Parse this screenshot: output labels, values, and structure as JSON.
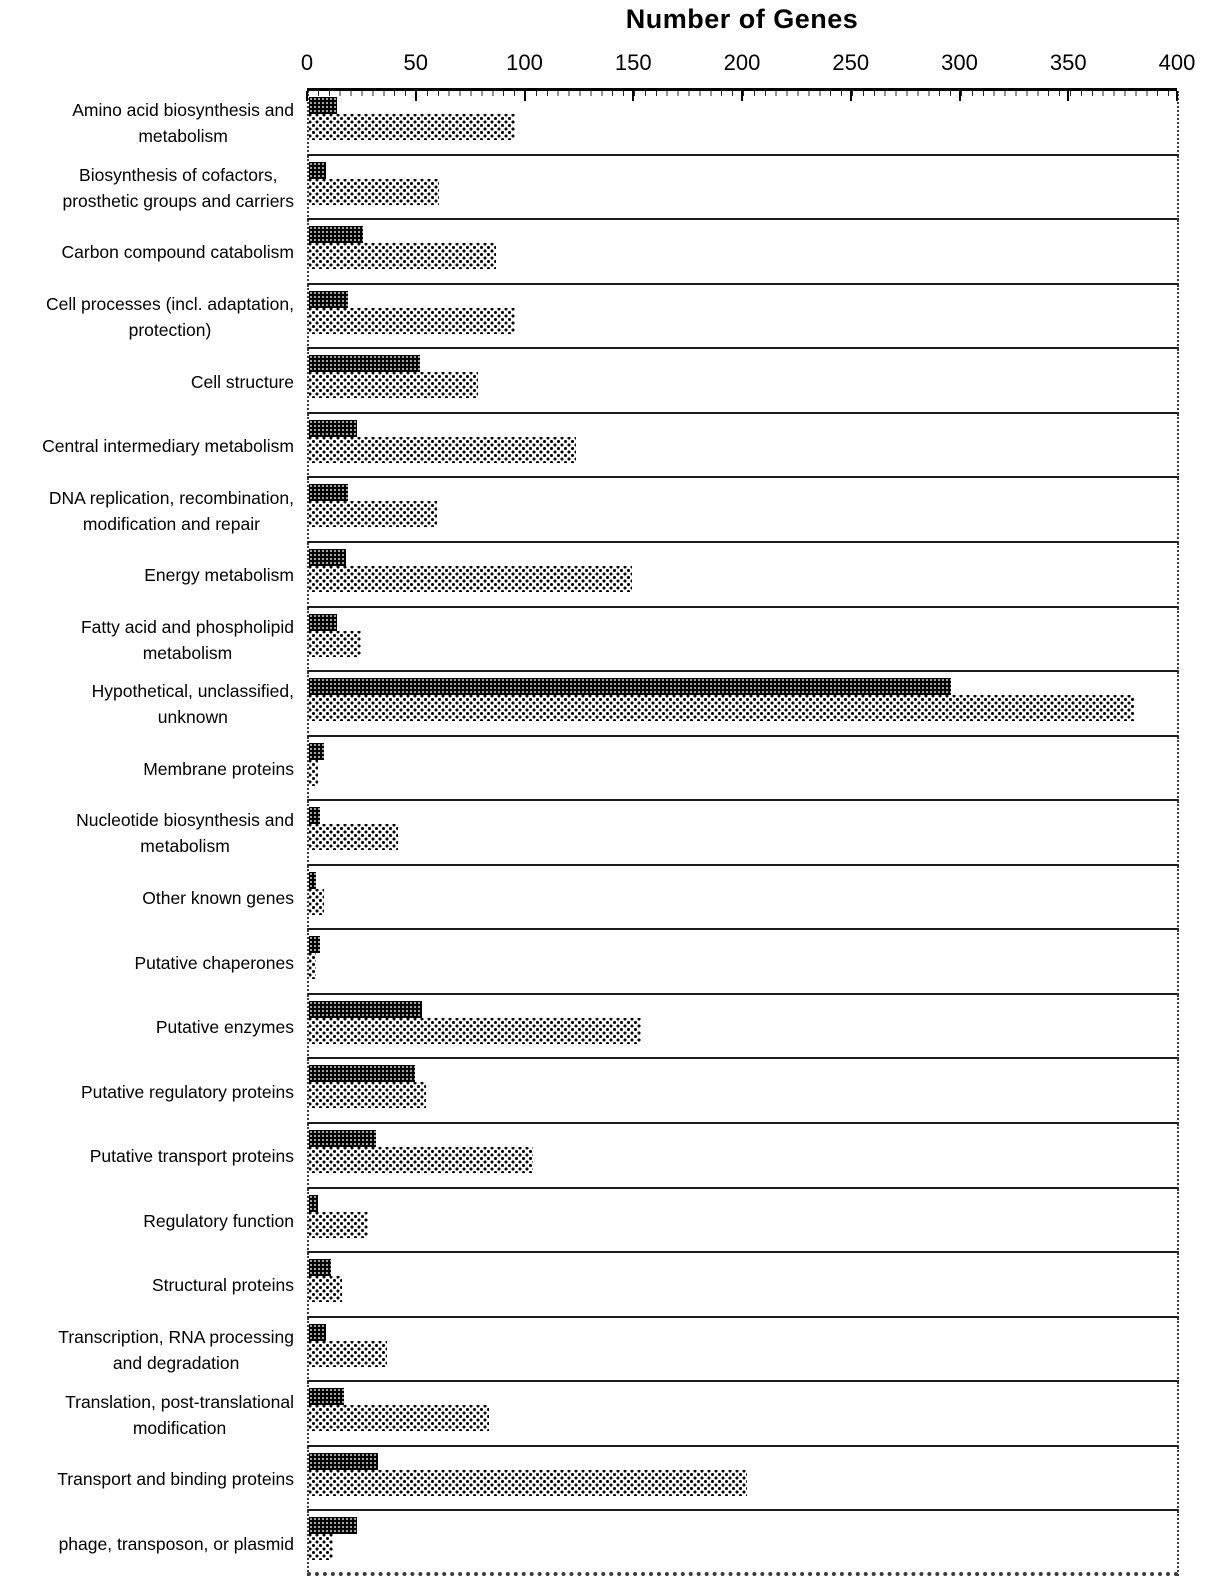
{
  "chart_data": {
    "type": "bar",
    "orientation": "horizontal",
    "title": "Number of Genes",
    "xlabel": "Number of Genes",
    "ylabel": "",
    "xlim": [
      0,
      400
    ],
    "x_ticks": [
      0,
      50,
      100,
      150,
      200,
      250,
      300,
      350,
      400
    ],
    "legend": "none",
    "grid": "horizontal row separator lines",
    "categories": [
      "Amino acid biosynthesis and\nmetabolism",
      "Biosynthesis of cofactors,\nprosthetic groups and carriers",
      "Carbon compound catabolism",
      "Cell processes (incl. adaptation,\nprotection)",
      "Cell structure",
      "Central intermediary metabolism",
      "DNA replication, recombination,\nmodification and repair",
      "Energy metabolism",
      "Fatty acid and phospholipid\nmetabolism",
      "Hypothetical, unclassified,\nunknown",
      "Membrane proteins",
      "Nucleotide biosynthesis and\nmetabolism",
      "Other known genes",
      "Putative chaperones",
      "Putative enzymes",
      "Putative regulatory proteins",
      "Putative transport proteins",
      "Regulatory function",
      "Structural proteins",
      "Transcription, RNA processing\nand degradation",
      "Translation, post-translational\nmodification",
      "Transport and binding proteins",
      "phage, transposon, or plasmid"
    ],
    "series": [
      {
        "name": "black crosshatch bars",
        "pattern": "dark-crosshatch",
        "values": [
          13,
          8,
          25,
          18,
          51,
          22,
          18,
          17,
          13,
          296,
          7,
          5,
          3,
          5,
          52,
          49,
          31,
          4,
          10,
          8,
          16,
          32,
          22
        ]
      },
      {
        "name": "stippled dotted bars",
        "pattern": "light-dotted",
        "values": [
          95,
          60,
          86,
          95,
          78,
          123,
          59,
          149,
          24,
          380,
          4,
          41,
          7,
          3,
          153,
          54,
          103,
          27,
          15,
          36,
          83,
          202,
          11
        ]
      }
    ]
  }
}
